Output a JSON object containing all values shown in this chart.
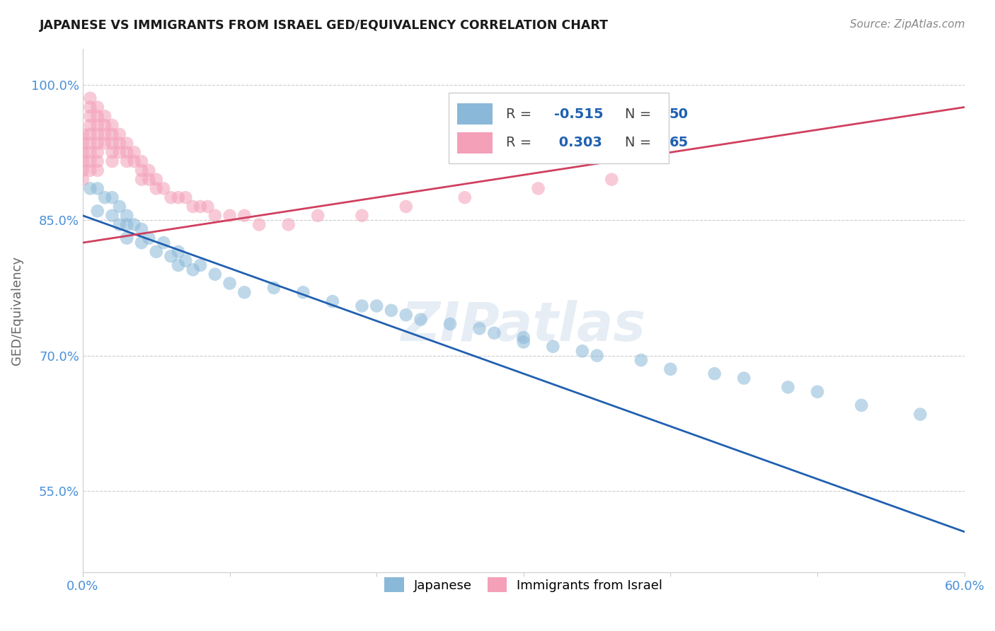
{
  "title": "JAPANESE VS IMMIGRANTS FROM ISRAEL GED/EQUIVALENCY CORRELATION CHART",
  "source_text": "Source: ZipAtlas.com",
  "ylabel": "GED/Equivalency",
  "xlim": [
    0.0,
    0.6
  ],
  "ylim": [
    0.46,
    1.04
  ],
  "xticks": [
    0.0,
    0.1,
    0.2,
    0.3,
    0.4,
    0.5,
    0.6
  ],
  "xticklabels": [
    "0.0%",
    "",
    "",
    "",
    "",
    "",
    "60.0%"
  ],
  "yticks": [
    0.55,
    0.7,
    0.85,
    1.0
  ],
  "yticklabels": [
    "55.0%",
    "70.0%",
    "85.0%",
    "100.0%"
  ],
  "watermark": "ZIPatlas",
  "background_color": "#ffffff",
  "grid_color": "#cccccc",
  "title_fontsize": 13,
  "R_japanese": -0.515,
  "N_japanese": 50,
  "R_israel": 0.303,
  "N_israel": 65,
  "japanese_color": "#8ab8d8",
  "israel_color": "#f4a0b8",
  "japanese_line_color": "#2060b0",
  "israel_line_color": "#d04060",
  "japanese_line_y0": 0.855,
  "japanese_line_y1": 0.505,
  "israel_line_y0": 0.825,
  "israel_line_y1": 0.975,
  "japanese_points_x": [
    0.005,
    0.01,
    0.01,
    0.015,
    0.02,
    0.02,
    0.025,
    0.025,
    0.03,
    0.03,
    0.03,
    0.035,
    0.04,
    0.04,
    0.045,
    0.05,
    0.055,
    0.06,
    0.065,
    0.065,
    0.07,
    0.075,
    0.08,
    0.09,
    0.1,
    0.11,
    0.13,
    0.15,
    0.17,
    0.19,
    0.2,
    0.21,
    0.22,
    0.23,
    0.25,
    0.27,
    0.28,
    0.3,
    0.3,
    0.32,
    0.34,
    0.35,
    0.38,
    0.4,
    0.43,
    0.45,
    0.48,
    0.5,
    0.53,
    0.57
  ],
  "japanese_points_y": [
    0.885,
    0.885,
    0.86,
    0.875,
    0.875,
    0.855,
    0.865,
    0.845,
    0.855,
    0.845,
    0.83,
    0.845,
    0.84,
    0.825,
    0.83,
    0.815,
    0.825,
    0.81,
    0.815,
    0.8,
    0.805,
    0.795,
    0.8,
    0.79,
    0.78,
    0.77,
    0.775,
    0.77,
    0.76,
    0.755,
    0.755,
    0.75,
    0.745,
    0.74,
    0.735,
    0.73,
    0.725,
    0.72,
    0.715,
    0.71,
    0.705,
    0.7,
    0.695,
    0.685,
    0.68,
    0.675,
    0.665,
    0.66,
    0.645,
    0.635
  ],
  "israel_points_x": [
    0.0,
    0.0,
    0.0,
    0.0,
    0.0,
    0.0,
    0.005,
    0.005,
    0.005,
    0.005,
    0.005,
    0.005,
    0.005,
    0.005,
    0.005,
    0.01,
    0.01,
    0.01,
    0.01,
    0.01,
    0.01,
    0.01,
    0.01,
    0.015,
    0.015,
    0.015,
    0.015,
    0.02,
    0.02,
    0.02,
    0.02,
    0.02,
    0.025,
    0.025,
    0.025,
    0.03,
    0.03,
    0.03,
    0.035,
    0.035,
    0.04,
    0.04,
    0.04,
    0.045,
    0.045,
    0.05,
    0.05,
    0.055,
    0.06,
    0.065,
    0.07,
    0.075,
    0.08,
    0.085,
    0.09,
    0.1,
    0.11,
    0.12,
    0.14,
    0.16,
    0.19,
    0.22,
    0.26,
    0.31,
    0.36
  ],
  "israel_points_y": [
    0.945,
    0.935,
    0.925,
    0.915,
    0.905,
    0.895,
    0.985,
    0.975,
    0.965,
    0.955,
    0.945,
    0.935,
    0.925,
    0.915,
    0.905,
    0.975,
    0.965,
    0.955,
    0.945,
    0.935,
    0.925,
    0.915,
    0.905,
    0.965,
    0.955,
    0.945,
    0.935,
    0.955,
    0.945,
    0.935,
    0.925,
    0.915,
    0.945,
    0.935,
    0.925,
    0.935,
    0.925,
    0.915,
    0.925,
    0.915,
    0.915,
    0.905,
    0.895,
    0.905,
    0.895,
    0.895,
    0.885,
    0.885,
    0.875,
    0.875,
    0.875,
    0.865,
    0.865,
    0.865,
    0.855,
    0.855,
    0.855,
    0.845,
    0.845,
    0.855,
    0.855,
    0.865,
    0.875,
    0.885,
    0.895
  ]
}
